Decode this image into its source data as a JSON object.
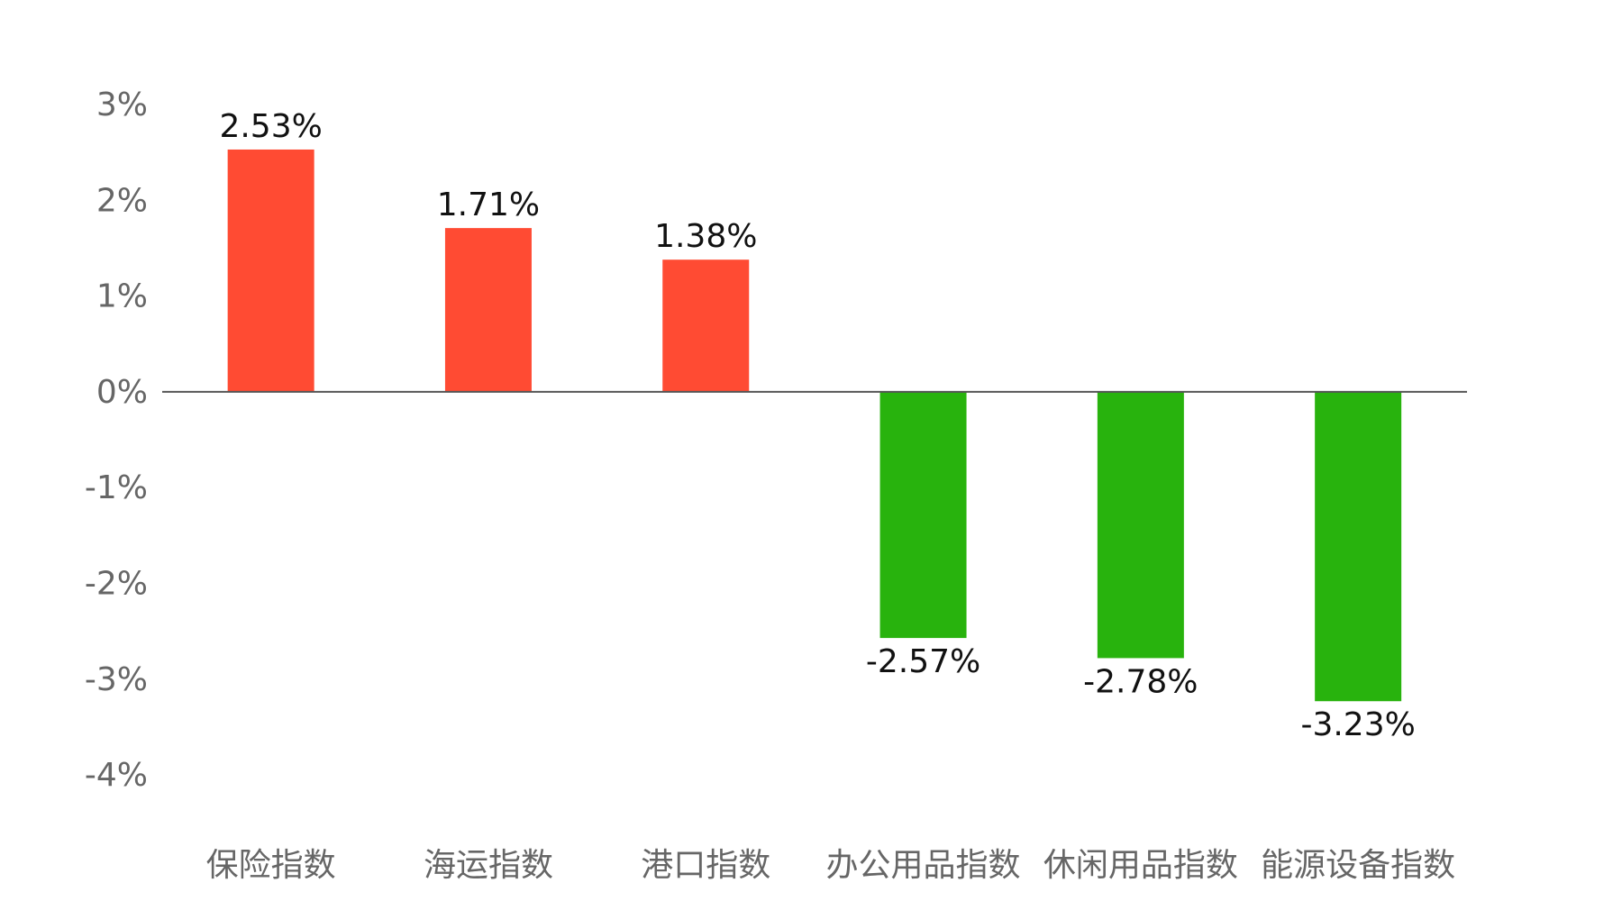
{
  "chart_data": {
    "type": "bar",
    "categories": [
      "保险指数",
      "海运指数",
      "港口指数",
      "办公用品指数",
      "休闲用品指数",
      "能源设备指数"
    ],
    "values": [
      2.53,
      1.71,
      1.38,
      -2.57,
      -2.78,
      -3.23
    ],
    "data_labels": [
      "2.53%",
      "1.71%",
      "1.38%",
      "-2.57%",
      "-2.78%",
      "-3.23%"
    ],
    "ylim": [
      -4,
      3
    ],
    "yticks": [
      3,
      2,
      1,
      0,
      -1,
      -2,
      -3,
      -4
    ],
    "ytick_labels": [
      "3%",
      "2%",
      "1%",
      "0%",
      "-1%",
      "-2%",
      "-3%",
      "-4%"
    ],
    "grid": false,
    "colors": {
      "positive": "#FF4B33",
      "negative": "#28B30D",
      "zero_line": "#555555"
    }
  }
}
